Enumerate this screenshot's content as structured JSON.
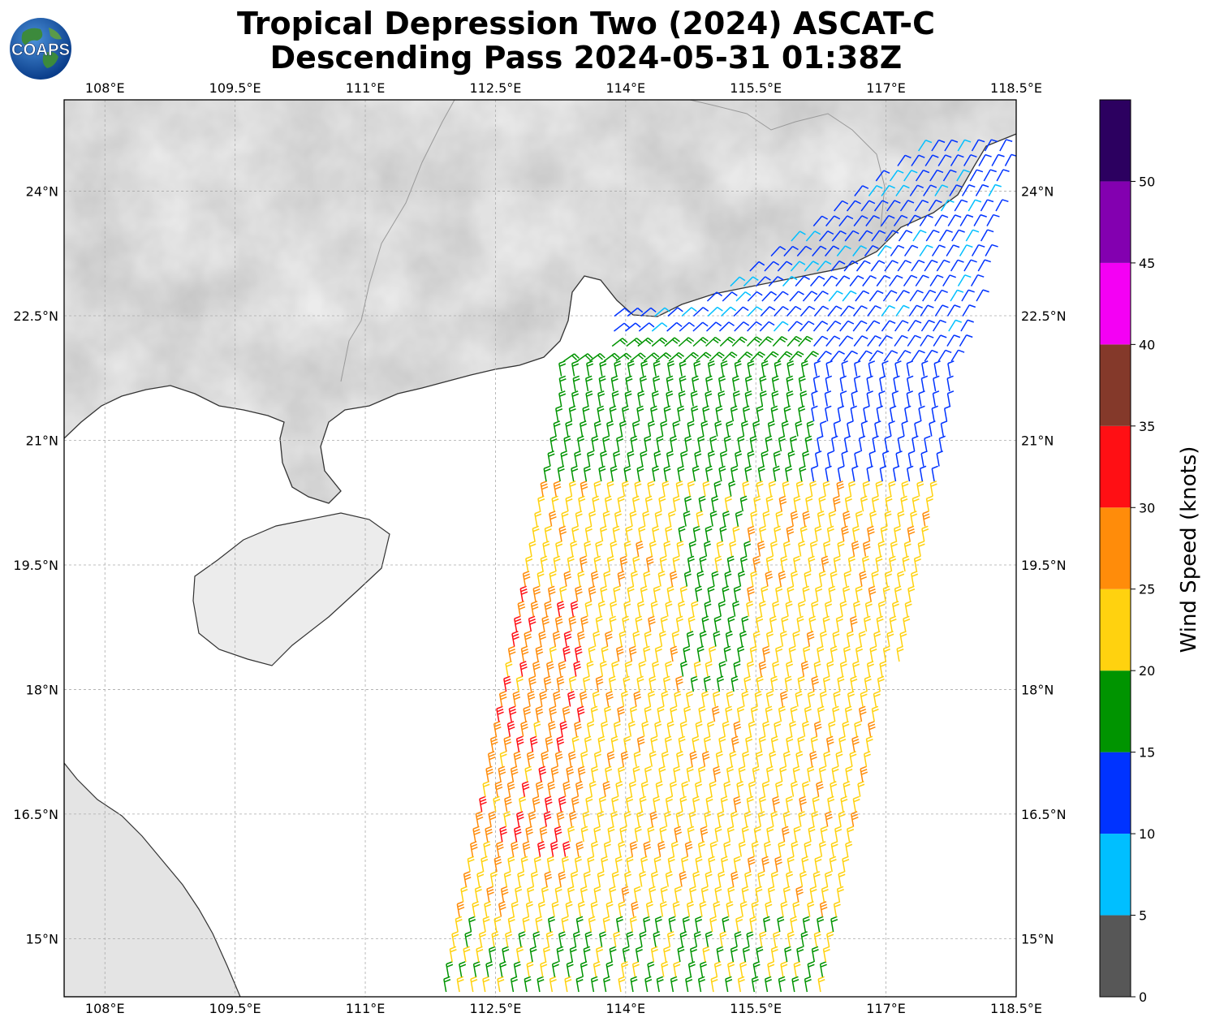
{
  "title": {
    "line1": "Tropical Depression Two (2024) ASCAT-C",
    "line2": "Descending Pass 2024-05-31 01:38Z"
  },
  "logo": {
    "text": "COAPS",
    "icon": "globe-logo-icon"
  },
  "map": {
    "lon_ticks": [
      "108°E",
      "109.5°E",
      "111°E",
      "112.5°E",
      "114°E",
      "115.5°E",
      "117°E",
      "118.5°E"
    ],
    "lat_ticks": [
      "24°N",
      "22.5°N",
      "21°N",
      "19.5°N",
      "18°N",
      "16.5°N",
      "15°N"
    ],
    "lon_range": [
      107.53,
      118.5
    ],
    "lat_range": [
      14.3,
      25.1
    ],
    "gridlines": true,
    "coastline_color": "#333333",
    "land_shading": "grayscale-topography"
  },
  "colorbar": {
    "label": "Wind Speed (knots)",
    "ticks": [
      "0",
      "5",
      "10",
      "15",
      "20",
      "25",
      "30",
      "35",
      "40",
      "45",
      "50"
    ],
    "bins": [
      {
        "min": 0,
        "max": 5,
        "color": "#575757"
      },
      {
        "min": 5,
        "max": 10,
        "color": "#00bfff"
      },
      {
        "min": 10,
        "max": 15,
        "color": "#0033ff"
      },
      {
        "min": 15,
        "max": 20,
        "color": "#009400"
      },
      {
        "min": 20,
        "max": 25,
        "color": "#ffd20f"
      },
      {
        "min": 25,
        "max": 30,
        "color": "#ff8c0a"
      },
      {
        "min": 30,
        "max": 35,
        "color": "#ff0f14"
      },
      {
        "min": 35,
        "max": 40,
        "color": "#84392a"
      },
      {
        "min": 40,
        "max": 45,
        "color": "#f400f4"
      },
      {
        "min": 45,
        "max": 50,
        "color": "#8300b0"
      },
      {
        "min": 50,
        "max": 55,
        "color": "#2c0060"
      }
    ]
  }
}
